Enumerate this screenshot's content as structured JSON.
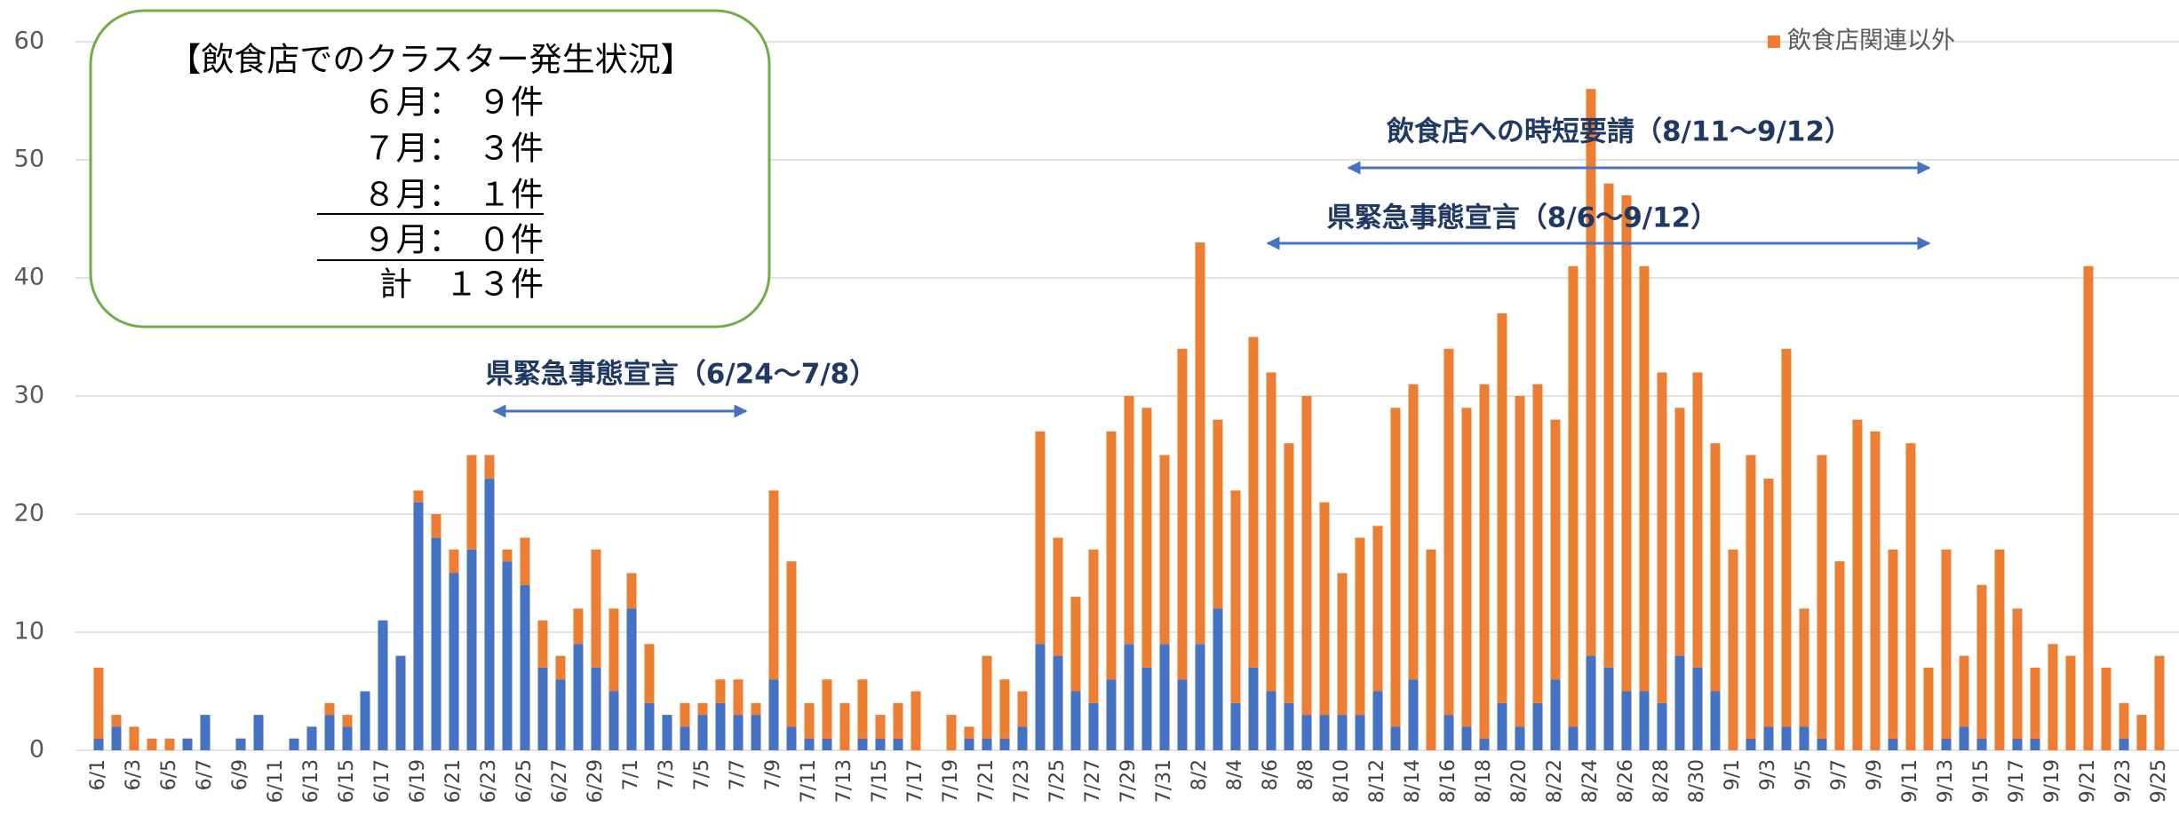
{
  "chart_data": {
    "type": "stacked-bar",
    "categories": [
      "6/1",
      null,
      "6/3",
      null,
      "6/5",
      null,
      "6/7",
      null,
      "6/9",
      null,
      "6/11",
      null,
      "6/13",
      null,
      "6/15",
      null,
      "6/17",
      null,
      "6/19",
      null,
      "6/21",
      null,
      "6/23",
      null,
      "6/25",
      null,
      "6/27",
      null,
      "6/29",
      null,
      "7/1",
      null,
      "7/3",
      null,
      "7/5",
      null,
      "7/7",
      null,
      "7/9",
      null,
      "7/11",
      null,
      "7/13",
      null,
      "7/15",
      null,
      "7/17",
      null,
      "7/19",
      null,
      "7/21",
      null,
      "7/23",
      null,
      "7/25",
      null,
      "7/27",
      null,
      "7/29",
      null,
      "7/31",
      null,
      "8/2",
      null,
      "8/4",
      null,
      "8/6",
      null,
      "8/8",
      null,
      "8/10",
      null,
      "8/12",
      null,
      "8/14",
      null,
      "8/16",
      null,
      "8/18",
      null,
      "8/20",
      null,
      "8/22",
      null,
      "8/24",
      null,
      "8/26",
      null,
      "8/28",
      null,
      "8/30",
      null,
      "9/1",
      null,
      "9/3",
      null,
      "9/5",
      null,
      "9/7",
      null,
      "9/9",
      null,
      "9/11",
      null,
      "9/13",
      null,
      "9/15",
      null,
      "9/17",
      null,
      "9/19",
      null,
      "9/21",
      null,
      "9/23",
      null,
      "9/25"
    ],
    "series": [
      {
        "color": "#4472c4",
        "values": [
          1,
          2,
          0,
          0,
          0,
          1,
          3,
          0,
          1,
          3,
          0,
          1,
          2,
          3,
          2,
          5,
          11,
          8,
          21,
          18,
          15,
          17,
          23,
          16,
          14,
          7,
          6,
          9,
          7,
          5,
          12,
          4,
          3,
          2,
          3,
          4,
          3,
          3,
          6,
          2,
          1,
          1,
          0,
          1,
          1,
          1,
          0,
          0,
          0,
          1,
          1,
          1,
          2,
          9,
          8,
          5,
          4,
          6,
          9,
          7,
          9,
          6,
          9,
          12,
          4,
          7,
          5,
          4,
          3,
          3,
          3,
          3,
          5,
          2,
          6,
          0,
          3,
          2,
          1,
          4,
          2,
          4,
          6,
          2,
          8,
          7,
          5,
          5,
          4,
          8,
          7,
          5,
          0,
          1,
          2,
          2,
          2,
          1,
          0,
          0,
          0,
          1,
          0,
          0,
          1,
          2,
          1,
          0,
          1,
          1,
          0,
          0,
          0,
          0,
          1,
          0,
          0
        ]
      },
      {
        "name": "飲食店関連以外",
        "color": "#ed7d31",
        "values": [
          6,
          1,
          2,
          1,
          1,
          0,
          0,
          0,
          0,
          0,
          0,
          0,
          0,
          1,
          1,
          0,
          0,
          0,
          1,
          2,
          2,
          8,
          2,
          1,
          4,
          4,
          2,
          3,
          10,
          7,
          3,
          5,
          0,
          2,
          1,
          2,
          3,
          1,
          16,
          14,
          3,
          5,
          4,
          5,
          2,
          3,
          5,
          0,
          3,
          1,
          7,
          5,
          3,
          18,
          10,
          8,
          13,
          21,
          21,
          22,
          16,
          28,
          34,
          16,
          18,
          28,
          27,
          22,
          27,
          18,
          12,
          15,
          14,
          27,
          25,
          17,
          31,
          27,
          30,
          33,
          28,
          27,
          22,
          39,
          48,
          41,
          42,
          36,
          28,
          21,
          25,
          21,
          17,
          24,
          21,
          32,
          10,
          24,
          16,
          28,
          27,
          16,
          26,
          7,
          16,
          6,
          13,
          17,
          11,
          6,
          9,
          8,
          41,
          7,
          3,
          3,
          8
        ]
      }
    ],
    "ylim": [
      0,
      60
    ],
    "yticks": [
      0,
      10,
      20,
      30,
      40,
      50,
      60
    ],
    "grid": true,
    "annotations": [
      "県緊急事態宣言（6/24～7/8）",
      "飲食店への時短要請（8/11～9/12）",
      "県緊急事態宣言（8/6～9/12）"
    ],
    "summary_box": [
      "【飲食店でのクラスター発生状況】",
      "６月：　９件",
      "７月：　３件",
      "８月：　１件",
      "９月：　０件",
      "計　１３件"
    ]
  }
}
